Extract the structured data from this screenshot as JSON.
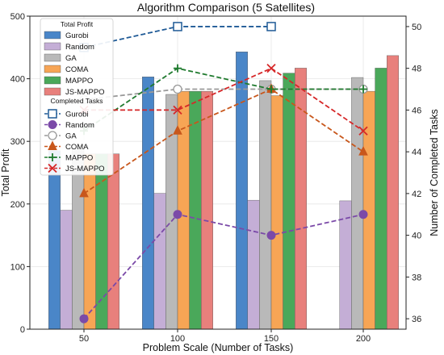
{
  "chart_data": {
    "type": "bar",
    "title": "Algorithm Comparison (5 Satellites)",
    "xlabel": "Problem Scale (Number of Tasks)",
    "ylabel": "Total Profit",
    "y2label": "Number of Completed Tasks",
    "categories": [
      "50",
      "100",
      "150",
      "200"
    ],
    "ylim": [
      0,
      500
    ],
    "yticks": [
      0,
      100,
      200,
      300,
      400,
      500
    ],
    "y2lim": [
      35.5,
      50.5
    ],
    "y2ticks": [
      36,
      38,
      40,
      42,
      44,
      46,
      48,
      50
    ],
    "grid": true,
    "legend_profit_title": "Total Profit",
    "legend_tasks_title": "Completed Tasks",
    "profit_series": [
      {
        "name": "Gurobi",
        "color": "#4a86c8",
        "values": [
          285,
          403,
          443,
          null
        ]
      },
      {
        "name": "Random",
        "color": "#c4aed6",
        "values": [
          190,
          217,
          206,
          205
        ]
      },
      {
        "name": "GA",
        "color": "#b9b9b9",
        "values": [
          288,
          375,
          397,
          402
        ]
      },
      {
        "name": "COMA",
        "color": "#f7a555",
        "values": [
          280,
          380,
          373,
          380
        ]
      },
      {
        "name": "MAPPO",
        "color": "#4aa85a",
        "values": [
          280,
          380,
          409,
          417
        ]
      },
      {
        "name": "JS-MAPPO",
        "color": "#e8807c",
        "values": [
          280,
          380,
          417,
          437
        ]
      }
    ],
    "task_series": [
      {
        "name": "Gurobi",
        "color": "#1f5a96",
        "marker": "square-open",
        "values": [
          49,
          50,
          50,
          null
        ]
      },
      {
        "name": "Random",
        "color": "#7b4aa8",
        "marker": "circle",
        "values": [
          36,
          41,
          40,
          41
        ]
      },
      {
        "name": "GA",
        "color": "#9a9a9a",
        "marker": "circle-open",
        "values": [
          46.5,
          47,
          47,
          47
        ]
      },
      {
        "name": "COMA",
        "color": "#c8571c",
        "marker": "triangle",
        "values": [
          42,
          45,
          47,
          44
        ]
      },
      {
        "name": "MAPPO",
        "color": "#1f7a2e",
        "marker": "plus",
        "values": [
          45,
          48,
          47,
          47
        ]
      },
      {
        "name": "JS-MAPPO",
        "color": "#d62728",
        "marker": "x",
        "values": [
          46,
          46,
          48,
          45
        ]
      }
    ]
  }
}
